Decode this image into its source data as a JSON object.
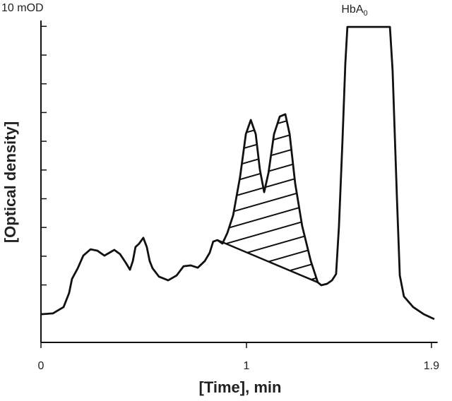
{
  "chart_data": {
    "type": "line",
    "unit_label": "10 mOD",
    "x_label": "[Time], min",
    "y_label": "[Optical density]",
    "annotation": {
      "text": "HbA",
      "subscript": "0"
    },
    "x": [
      0,
      0.058,
      0.11,
      0.137,
      0.151,
      0.179,
      0.206,
      0.241,
      0.275,
      0.309,
      0.333,
      0.357,
      0.385,
      0.412,
      0.433,
      0.447,
      0.46,
      0.478,
      0.498,
      0.515,
      0.529,
      0.543,
      0.574,
      0.619,
      0.66,
      0.694,
      0.729,
      0.763,
      0.797,
      0.821,
      0.838,
      0.859,
      0.883,
      0.907,
      0.935,
      0.969,
      0.997,
      1.021,
      1.045,
      1.065,
      1.086,
      1.107,
      1.134,
      1.162,
      1.189,
      1.21,
      1.237,
      1.271,
      1.313,
      1.347,
      1.364,
      1.392,
      1.416,
      1.436,
      1.45,
      1.467,
      1.481,
      1.491,
      1.698,
      1.711,
      1.732,
      1.746,
      1.766,
      1.811,
      1.863,
      1.914
    ],
    "series": [
      {
        "color": "#111111",
        "values": [
          0.98,
          1.01,
          1.23,
          1.72,
          2.21,
          2.58,
          3.02,
          3.24,
          3.19,
          3.02,
          3.12,
          3.22,
          3.07,
          2.78,
          2.53,
          2.83,
          3.32,
          3.44,
          3.64,
          3.32,
          2.83,
          2.58,
          2.29,
          2.16,
          2.33,
          2.65,
          2.68,
          2.6,
          2.83,
          3.12,
          3.51,
          3.56,
          3.44,
          3.81,
          4.42,
          5.77,
          7.25,
          7.74,
          7.25,
          6.02,
          5.23,
          5.9,
          7.25,
          7.86,
          7.94,
          7.25,
          5.53,
          4.05,
          2.83,
          2.09,
          1.99,
          2.04,
          2.16,
          2.38,
          4.05,
          7.0,
          9.71,
          10.98,
          10.98,
          9.46,
          5.04,
          2.33,
          1.6,
          1.23,
          0.98,
          0.81
        ]
      }
    ],
    "xlim": [
      0,
      1.93
    ],
    "ylim": [
      0,
      11.2
    ],
    "xticks": [
      0,
      1,
      1.9
    ],
    "yticks": [
      0,
      1,
      2,
      3,
      4,
      5,
      6,
      7,
      8,
      9,
      10,
      11
    ]
  }
}
